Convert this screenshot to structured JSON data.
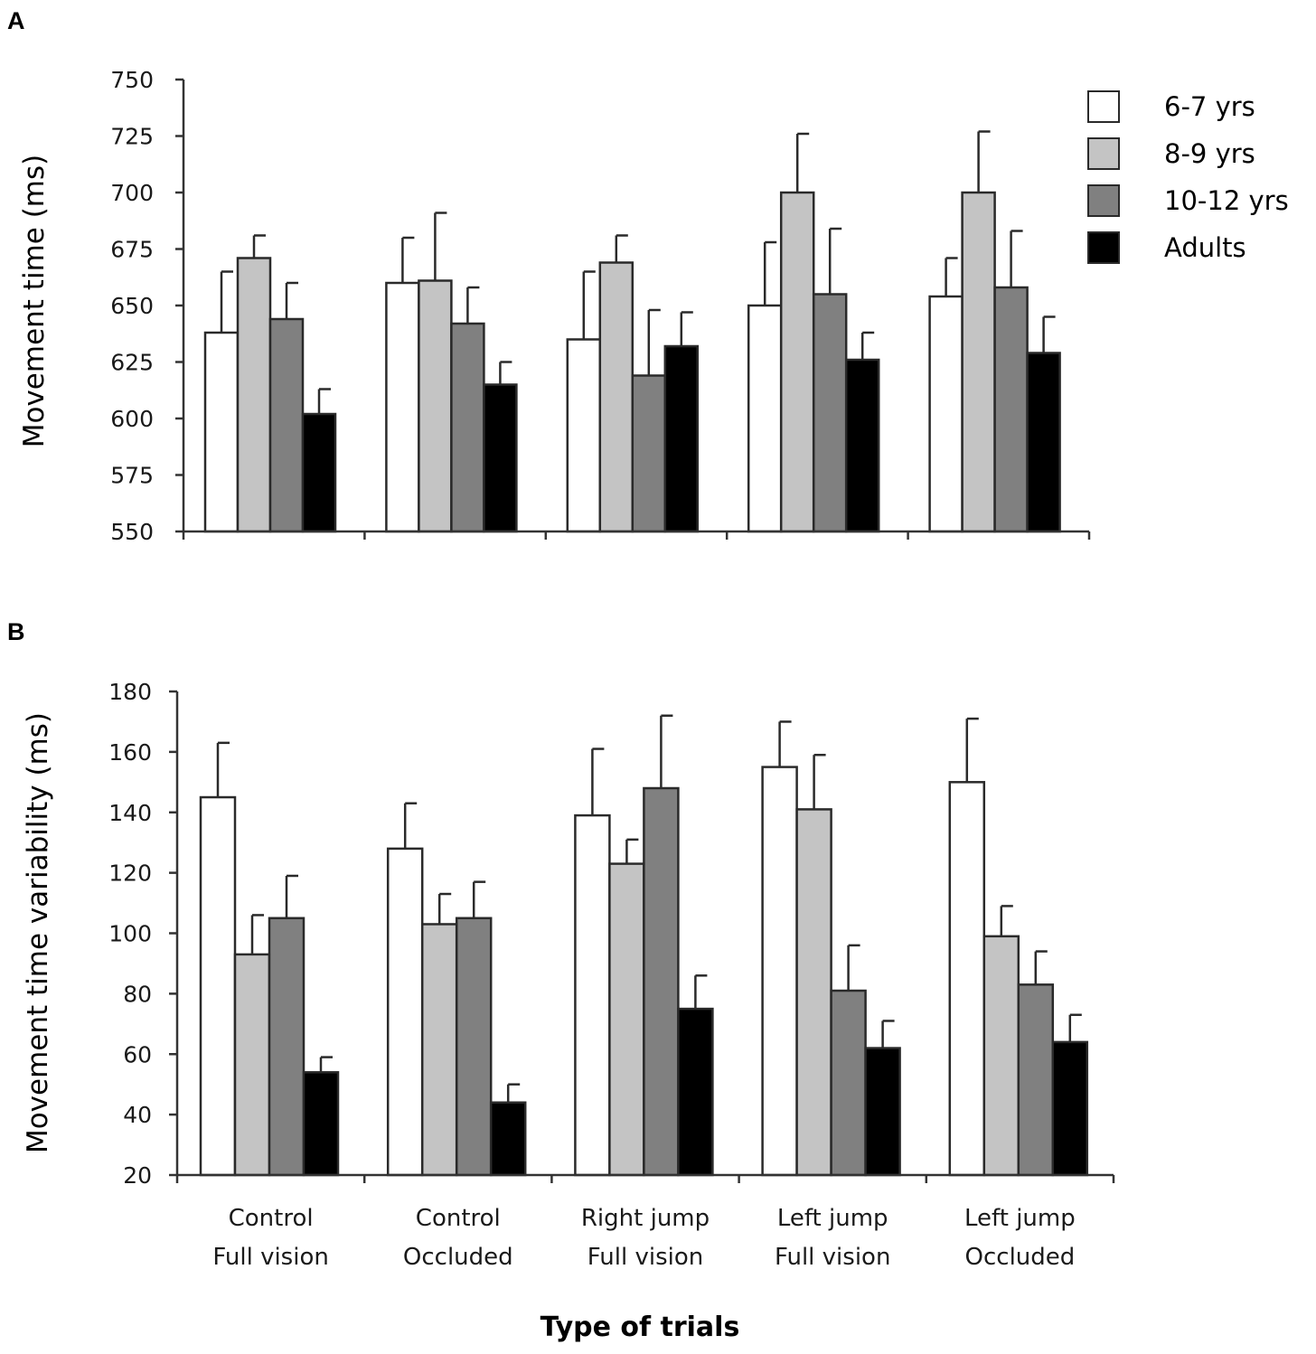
{
  "colors": {
    "series": [
      "#ffffff",
      "#c4c4c4",
      "#808080",
      "#000000"
    ],
    "outline": "#2a2a2a"
  },
  "legend": {
    "position": "top-right",
    "entries": [
      "6-7 yrs",
      "8-9 yrs",
      "10-12 yrs",
      "Adults"
    ]
  },
  "x_axis": {
    "title": "Type of trials",
    "categories": [
      [
        "Control",
        "Full vision"
      ],
      [
        "Control",
        "Occluded"
      ],
      [
        "Right jump",
        "Full vision"
      ],
      [
        "Left jump",
        "Full vision"
      ],
      [
        "Left jump",
        "Occluded"
      ]
    ]
  },
  "chart_data": [
    {
      "panel": "A",
      "type": "bar",
      "ylabel": "Movement time (ms)",
      "ylim": [
        550,
        750
      ],
      "yticks": [
        550,
        575,
        600,
        625,
        650,
        675,
        700,
        725,
        750
      ],
      "categories": [
        "Control Full vision",
        "Control Occluded",
        "Right jump Full vision",
        "Left jump Full vision",
        "Left jump Occluded"
      ],
      "series": [
        {
          "name": "6-7 yrs",
          "values": [
            638,
            660,
            635,
            650,
            654
          ],
          "errors": [
            27,
            20,
            30,
            28,
            17
          ]
        },
        {
          "name": "8-9 yrs",
          "values": [
            671,
            661,
            669,
            700,
            700
          ],
          "errors": [
            10,
            30,
            12,
            26,
            27
          ]
        },
        {
          "name": "10-12 yrs",
          "values": [
            644,
            642,
            619,
            655,
            658
          ],
          "errors": [
            16,
            16,
            29,
            29,
            25
          ]
        },
        {
          "name": "Adults",
          "values": [
            602,
            615,
            632,
            626,
            629
          ],
          "errors": [
            11,
            10,
            15,
            12,
            16
          ]
        }
      ]
    },
    {
      "panel": "B",
      "type": "bar",
      "ylabel": "Movement time variability (ms)",
      "ylim": [
        20,
        180
      ],
      "yticks": [
        20,
        40,
        60,
        80,
        100,
        120,
        140,
        160,
        180
      ],
      "categories": [
        "Control Full vision",
        "Control Occluded",
        "Right jump Full vision",
        "Left jump Full vision",
        "Left jump Occluded"
      ],
      "series": [
        {
          "name": "6-7 yrs",
          "values": [
            145,
            128,
            139,
            155,
            150
          ],
          "errors": [
            18,
            15,
            22,
            15,
            21
          ]
        },
        {
          "name": "8-9 yrs",
          "values": [
            93,
            103,
            123,
            141,
            99
          ],
          "errors": [
            13,
            10,
            8,
            18,
            10
          ]
        },
        {
          "name": "10-12 yrs",
          "values": [
            105,
            105,
            148,
            81,
            83
          ],
          "errors": [
            14,
            12,
            24,
            15,
            11
          ]
        },
        {
          "name": "Adults",
          "values": [
            54,
            44,
            75,
            62,
            64
          ],
          "errors": [
            5,
            6,
            11,
            9,
            9
          ]
        }
      ]
    }
  ]
}
